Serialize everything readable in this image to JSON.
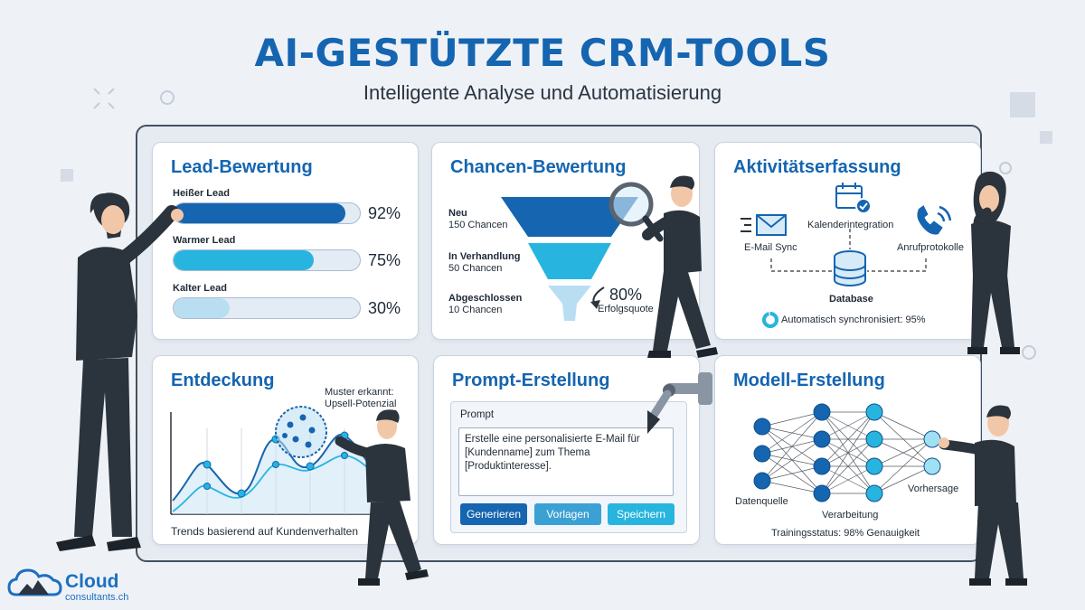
{
  "header": {
    "title": "AI-GESTÜTZTE CRM-TOOLS",
    "subtitle": "Intelligente Analyse und Automatisierung"
  },
  "colors": {
    "primary": "#1565b0",
    "accent": "#27b5df",
    "light": "#b9def2",
    "dark": "#2b333c"
  },
  "lead": {
    "title": "Lead-Bewertung",
    "items": [
      {
        "label": "Heißer Lead",
        "value": "92%",
        "fill": 0.92
      },
      {
        "label": "Warmer Lead",
        "value": "75%",
        "fill": 0.75
      },
      {
        "label": "Kalter Lead",
        "value": "30%",
        "fill": 0.3
      }
    ]
  },
  "chancen": {
    "title": "Chancen-Bewertung",
    "stages": [
      {
        "name": "Neu",
        "count": "150 Chancen"
      },
      {
        "name": "In Verhandlung",
        "count": "50 Chancen"
      },
      {
        "name": "Abgeschlossen",
        "count": "10 Chancen"
      }
    ],
    "rate": "80%",
    "rate_label": "Erfolgsquote"
  },
  "aktivitaet": {
    "title": "Aktivitätserfassung",
    "email": "E-Mail Sync",
    "kalender": "Kalenderintegration",
    "anruf": "Anrufprotokolle",
    "database": "Database",
    "sync": "Automatisch synchronisiert: 95%",
    "sync_value": 0.95
  },
  "entdeckung": {
    "title": "Entdeckung",
    "pattern_line1": "Muster erkannt:",
    "pattern_line2": "Upsell-Potenzial",
    "caption": "Trends basierend auf Kundenverhalten"
  },
  "prompt": {
    "title": "Prompt-Erstellung",
    "label": "Prompt",
    "text": "Erstelle eine personalisierte E-Mail für [Kundenname] zum Thema [Produktinteresse].",
    "buttons": [
      "Generieren",
      "Vorlagen",
      "Speichern"
    ]
  },
  "modell": {
    "title": "Modell-Erstellung",
    "datenquelle": "Datenquelle",
    "verarbeitung": "Verarbeitung",
    "vorhersage": "Vorhersage",
    "status": "Trainingsstatus: 98% Genauigkeit"
  },
  "logo": {
    "name": "Cloud",
    "sub": "consultants.ch"
  }
}
